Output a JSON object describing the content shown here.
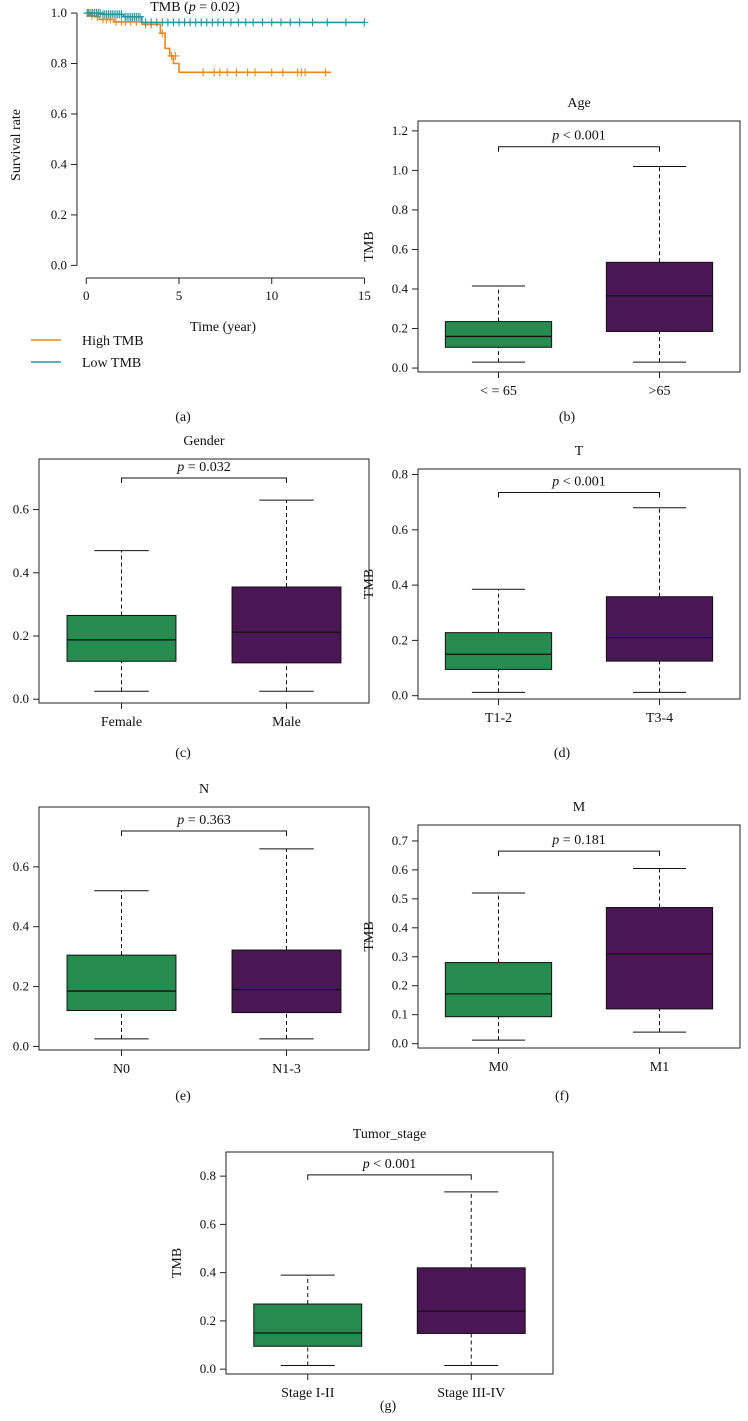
{
  "colors": {
    "high_tmb": "#E8891D",
    "low_tmb": "#1E9A9E",
    "box_left": "#268B4F",
    "box_right": "#4B1654",
    "axis": "#222222"
  },
  "panel_labels": [
    "(a)",
    "(b)",
    "(c)",
    "(d)",
    "(e)",
    "(f)",
    "(g)"
  ],
  "chart_data": [
    {
      "type": "line",
      "panel": "(a)",
      "title": "TMB (p = 0.02)",
      "title_parts": [
        "TMB (",
        "p",
        " = 0.02)"
      ],
      "xlabel": "Time (year)",
      "ylabel": "Survival rate",
      "xlim": [
        -0.5,
        15.3
      ],
      "ylim": [
        -0.05,
        1.02
      ],
      "xticks": [
        0,
        5,
        10,
        15
      ],
      "yticks": [
        0.0,
        0.2,
        0.4,
        0.6,
        0.8,
        1.0
      ],
      "ytick_labels": [
        "0.0",
        "0.2",
        "0.4",
        "0.6",
        "0.8",
        "1.0"
      ],
      "legend_position": "bottom-left",
      "series": [
        {
          "name": "High TMB",
          "color": "#E8891D",
          "x": [
            0,
            0.2,
            0.2,
            0.45,
            0.45,
            0.7,
            0.7,
            1.5,
            1.5,
            3.0,
            3.0,
            4.0,
            4.0,
            4.25,
            4.25,
            4.5,
            4.5,
            4.7,
            4.7,
            5.0,
            5.0,
            13.2
          ],
          "y": [
            1.0,
            1.0,
            0.99,
            0.99,
            0.985,
            0.985,
            0.975,
            0.975,
            0.965,
            0.965,
            0.955,
            0.955,
            0.92,
            0.92,
            0.86,
            0.86,
            0.83,
            0.83,
            0.8,
            0.8,
            0.765,
            0.765
          ],
          "censor_x": [
            0.1,
            0.3,
            0.6,
            0.9,
            1.1,
            1.3,
            1.6,
            1.9,
            2.1,
            2.4,
            2.7,
            3.2,
            3.5,
            4.1,
            4.6,
            4.8,
            6.3,
            6.9,
            7.2,
            7.6,
            8.1,
            8.7,
            9.1,
            10.0,
            10.6,
            11.4,
            11.6,
            11.8,
            12.9
          ],
          "censor_y": [
            1.0,
            0.99,
            0.985,
            0.975,
            0.975,
            0.975,
            0.965,
            0.965,
            0.965,
            0.965,
            0.965,
            0.955,
            0.955,
            0.92,
            0.83,
            0.83,
            0.765,
            0.765,
            0.765,
            0.765,
            0.765,
            0.765,
            0.765,
            0.765,
            0.765,
            0.765,
            0.765,
            0.765,
            0.765
          ]
        },
        {
          "name": "Low TMB",
          "color": "#1E9A9E",
          "x": [
            0,
            0.8,
            0.8,
            2.0,
            2.0,
            3.0,
            3.0,
            15.0
          ],
          "y": [
            1.0,
            1.0,
            0.995,
            0.995,
            0.985,
            0.985,
            0.963,
            0.963
          ],
          "censor_x": [
            0.05,
            0.15,
            0.25,
            0.35,
            0.45,
            0.55,
            0.65,
            0.75,
            0.9,
            1.0,
            1.1,
            1.2,
            1.3,
            1.4,
            1.5,
            1.6,
            1.7,
            1.8,
            1.9,
            2.1,
            2.2,
            2.3,
            2.4,
            2.5,
            2.6,
            2.7,
            2.8,
            2.9,
            3.2,
            3.5,
            3.8,
            4.1,
            4.4,
            4.7,
            5.0,
            5.3,
            5.6,
            5.9,
            6.2,
            6.5,
            6.8,
            7.1,
            7.4,
            7.8,
            8.2,
            8.6,
            9.0,
            9.5,
            10.0,
            10.5,
            11.0,
            11.5,
            12.2,
            13.0,
            14.0,
            15.0
          ],
          "censor_y": [
            1.0,
            1.0,
            1.0,
            1.0,
            1.0,
            1.0,
            1.0,
            1.0,
            0.995,
            0.995,
            0.995,
            0.995,
            0.995,
            0.995,
            0.995,
            0.995,
            0.995,
            0.995,
            0.995,
            0.985,
            0.985,
            0.985,
            0.985,
            0.985,
            0.985,
            0.985,
            0.985,
            0.985,
            0.963,
            0.963,
            0.963,
            0.963,
            0.963,
            0.963,
            0.963,
            0.963,
            0.963,
            0.963,
            0.963,
            0.963,
            0.963,
            0.963,
            0.963,
            0.963,
            0.963,
            0.963,
            0.963,
            0.963,
            0.963,
            0.963,
            0.963,
            0.963,
            0.963,
            0.963,
            0.963,
            0.963
          ]
        }
      ]
    },
    {
      "type": "box",
      "panel": "(b)",
      "title": "Age",
      "ylabel": "TMB",
      "p_text": "< 0.001",
      "ylim": [
        -0.02,
        1.25
      ],
      "yticks": [
        0.0,
        0.2,
        0.4,
        0.6,
        0.8,
        1.0,
        1.2
      ],
      "ytick_labels": [
        "0.0",
        "0.2",
        "0.4",
        "0.6",
        "0.8",
        "1.0",
        "1.2"
      ],
      "bracket_y": 1.12,
      "categories": [
        "< = 65",
        ">65"
      ],
      "boxes": [
        {
          "min": 0.03,
          "q1": 0.105,
          "median": 0.16,
          "q3": 0.235,
          "max": 0.415
        },
        {
          "min": 0.03,
          "q1": 0.185,
          "median": 0.365,
          "q3": 0.535,
          "max": 1.02
        }
      ]
    },
    {
      "type": "box",
      "panel": "(c)",
      "title": "Gender",
      "ylabel": "TMB",
      "p_text": "= 0.032",
      "ylim": [
        -0.012,
        0.76
      ],
      "yticks": [
        0.0,
        0.2,
        0.4,
        0.6
      ],
      "ytick_labels": [
        "0.0",
        "0.2",
        "0.4",
        "0.6"
      ],
      "bracket_y": 0.7,
      "categories": [
        "Female",
        "Male"
      ],
      "boxes": [
        {
          "min": 0.025,
          "q1": 0.12,
          "median": 0.188,
          "q3": 0.265,
          "max": 0.47
        },
        {
          "min": 0.025,
          "q1": 0.115,
          "median": 0.212,
          "q3": 0.355,
          "max": 0.63
        }
      ]
    },
    {
      "type": "box",
      "panel": "(d)",
      "title": "T",
      "ylabel": "TMB",
      "p_text": "< 0.001",
      "ylim": [
        -0.012,
        0.82
      ],
      "yticks": [
        0.0,
        0.2,
        0.4,
        0.6,
        0.8
      ],
      "ytick_labels": [
        "0.0",
        "0.2",
        "0.4",
        "0.6",
        "0.8"
      ],
      "bracket_y": 0.735,
      "categories": [
        "T1-2",
        "T3-4"
      ],
      "boxes": [
        {
          "min": 0.012,
          "q1": 0.095,
          "median": 0.15,
          "q3": 0.228,
          "max": 0.385
        },
        {
          "min": 0.012,
          "q1": 0.125,
          "median": 0.21,
          "q3": 0.358,
          "max": 0.68
        }
      ]
    },
    {
      "type": "box",
      "panel": "(e)",
      "title": "N",
      "ylabel": "TMB",
      "p_text": "= 0.363",
      "ylim": [
        -0.012,
        0.8
      ],
      "yticks": [
        0.0,
        0.2,
        0.4,
        0.6
      ],
      "ytick_labels": [
        "0.0",
        "0.2",
        "0.4",
        "0.6"
      ],
      "bracket_y": 0.72,
      "categories": [
        "N0",
        "N1-3"
      ],
      "boxes": [
        {
          "min": 0.025,
          "q1": 0.12,
          "median": 0.185,
          "q3": 0.305,
          "max": 0.52
        },
        {
          "min": 0.025,
          "q1": 0.113,
          "median": 0.19,
          "q3": 0.322,
          "max": 0.66
        }
      ]
    },
    {
      "type": "box",
      "panel": "(f)",
      "title": "M",
      "ylabel": "TMB",
      "p_text": "= 0.181",
      "ylim": [
        -0.015,
        0.755
      ],
      "yticks": [
        0.0,
        0.1,
        0.2,
        0.3,
        0.4,
        0.5,
        0.6,
        0.7
      ],
      "ytick_labels": [
        "0.0",
        "0.1",
        "0.2",
        "0.3",
        "0.4",
        "0.5",
        "0.6",
        "0.7"
      ],
      "bracket_y": 0.665,
      "categories": [
        "M0",
        "M1"
      ],
      "boxes": [
        {
          "min": 0.012,
          "q1": 0.093,
          "median": 0.172,
          "q3": 0.28,
          "max": 0.52
        },
        {
          "min": 0.04,
          "q1": 0.12,
          "median": 0.31,
          "q3": 0.47,
          "max": 0.605
        }
      ]
    },
    {
      "type": "box",
      "panel": "(g)",
      "title": "Tumor_stage",
      "ylabel": "TMB",
      "p_text": "< 0.001",
      "ylim": [
        -0.02,
        0.9
      ],
      "yticks": [
        0.0,
        0.2,
        0.4,
        0.6,
        0.8
      ],
      "ytick_labels": [
        "0.0",
        "0.2",
        "0.4",
        "0.6",
        "0.8"
      ],
      "bracket_y": 0.805,
      "categories": [
        "Stage I-II",
        "Stage III-IV"
      ],
      "boxes": [
        {
          "min": 0.015,
          "q1": 0.095,
          "median": 0.15,
          "q3": 0.27,
          "max": 0.39
        },
        {
          "min": 0.015,
          "q1": 0.148,
          "median": 0.24,
          "q3": 0.42,
          "max": 0.735
        }
      ]
    }
  ]
}
